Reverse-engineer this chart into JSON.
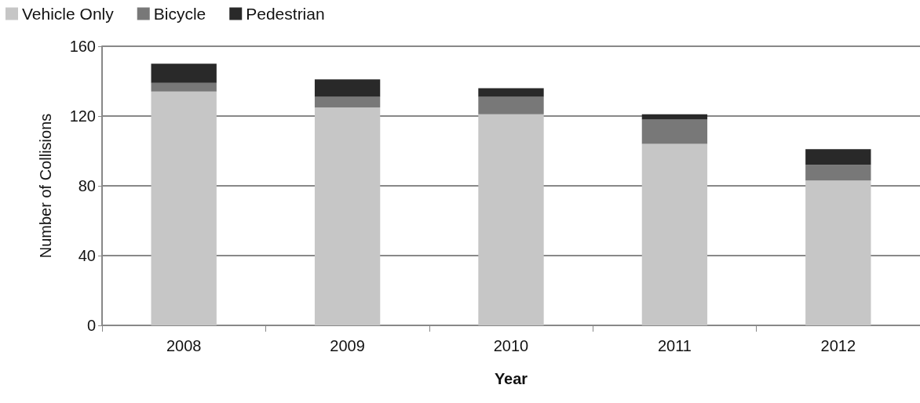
{
  "chart_data": {
    "type": "bar",
    "stacked": true,
    "xlabel": "Year",
    "ylabel": "Number of Collisions",
    "categories": [
      "2008",
      "2009",
      "2010",
      "2011",
      "2012"
    ],
    "series": [
      {
        "name": "Vehicle Only",
        "color": "#c6c6c6",
        "values": [
          134,
          125,
          121,
          104,
          83
        ]
      },
      {
        "name": "Bicycle",
        "color": "#787878",
        "values": [
          5,
          6,
          10,
          14,
          9
        ]
      },
      {
        "name": "Pedestrian",
        "color": "#292929",
        "values": [
          11,
          10,
          5,
          3,
          9
        ]
      }
    ],
    "ylim": [
      0,
      160
    ],
    "yticks": [
      0,
      40,
      80,
      120,
      160
    ],
    "grid": "y",
    "legend": "top left"
  }
}
